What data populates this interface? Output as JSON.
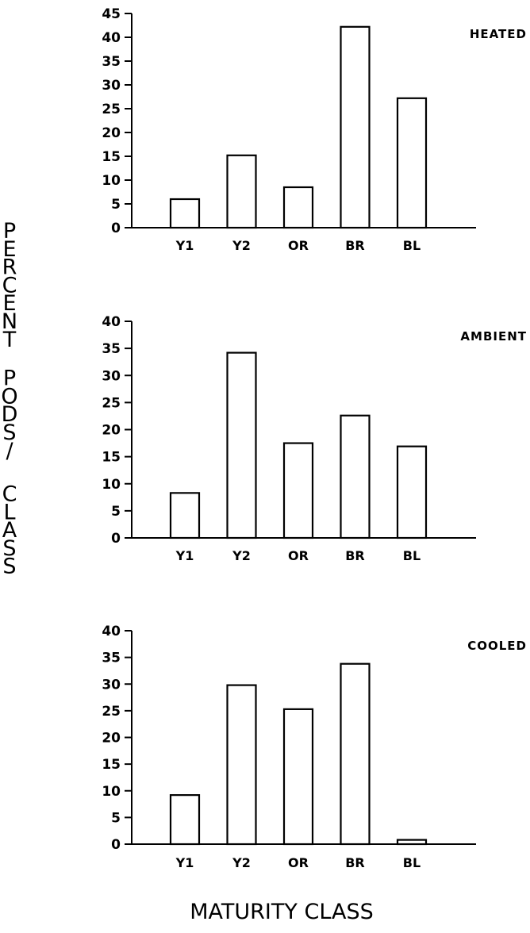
{
  "ylabel": "PERCENT PODS/CLASS",
  "xlabel": "MATURITY CLASS",
  "chart_data": [
    {
      "type": "bar",
      "title": "HEATED",
      "categories": [
        "Y1",
        "Y2",
        "OR",
        "BR",
        "BL"
      ],
      "values": [
        6,
        15.2,
        8.5,
        42.2,
        27.2
      ],
      "yticks": [
        0,
        5,
        10,
        15,
        20,
        25,
        30,
        35,
        40,
        45
      ],
      "ylim": [
        0,
        45
      ],
      "grid": false
    },
    {
      "type": "bar",
      "title": "AMBIENT",
      "categories": [
        "Y1",
        "Y2",
        "OR",
        "BR",
        "BL"
      ],
      "values": [
        8.3,
        34.2,
        17.5,
        22.6,
        16.9
      ],
      "yticks": [
        0,
        5,
        10,
        15,
        20,
        25,
        30,
        35,
        40
      ],
      "ylim": [
        0,
        40
      ],
      "grid": false
    },
    {
      "type": "bar",
      "title": "COOLED",
      "categories": [
        "Y1",
        "Y2",
        "OR",
        "BR",
        "BL"
      ],
      "values": [
        9.2,
        29.8,
        25.3,
        33.8,
        0.8
      ],
      "yticks": [
        0,
        5,
        10,
        15,
        20,
        25,
        30,
        35,
        40
      ],
      "ylim": [
        0,
        40
      ],
      "grid": false
    }
  ]
}
